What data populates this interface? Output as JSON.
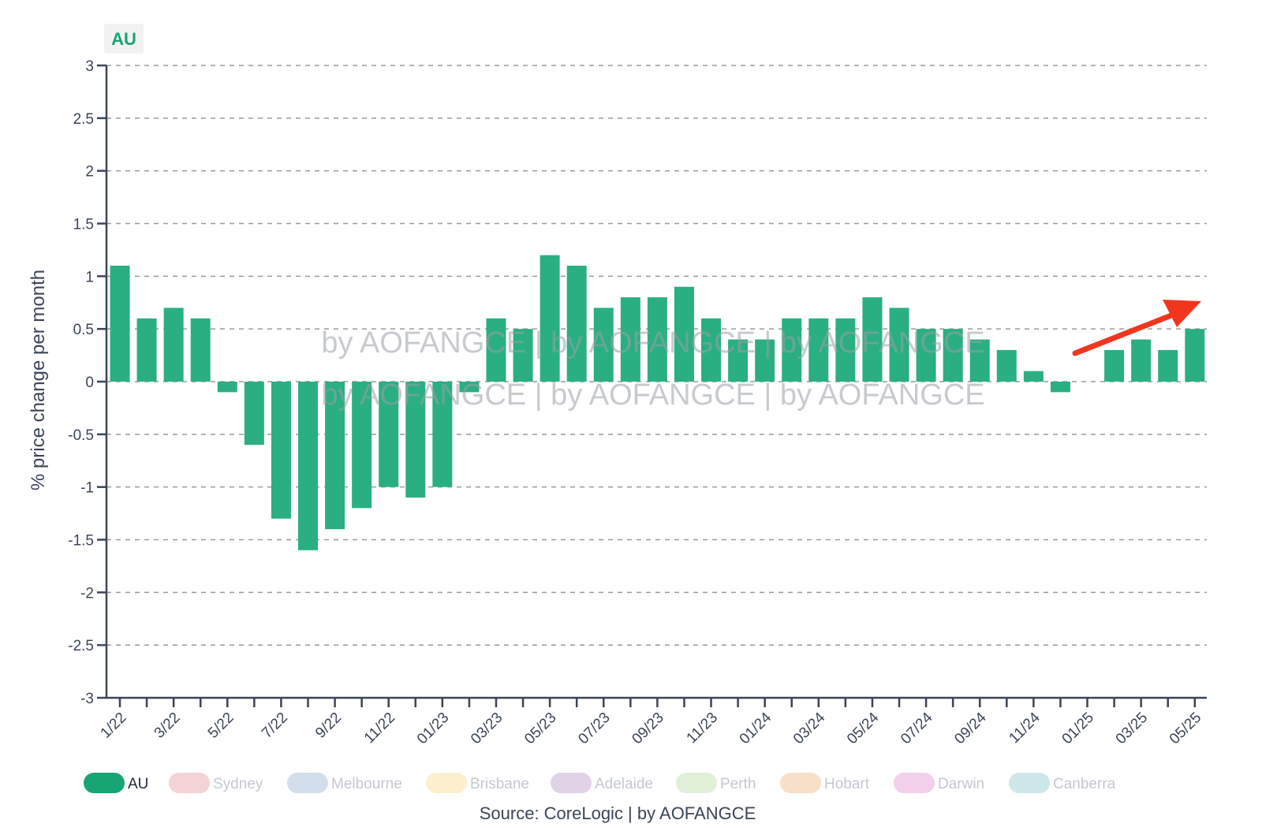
{
  "badge": {
    "label": "AU"
  },
  "source": "Source: CoreLogic | by AOFANGCE",
  "watermark": {
    "line1": "by AOFANGCE | by AOFANGCE | by AOFANGCE",
    "line2": "by AOFANGCE | by AOFANGCE | by AOFANGCE"
  },
  "colors": {
    "bar": "#2aaf82",
    "arrow": "#f2361e",
    "axis": "#3b4557"
  },
  "legend": [
    {
      "label": "AU",
      "color": "#17a573",
      "text_color": "#1f2937",
      "active": true
    },
    {
      "label": "Sydney",
      "color": "#f3d3d3",
      "text_color": "#c4c8cf",
      "active": false
    },
    {
      "label": "Melbourne",
      "color": "#d3deec",
      "text_color": "#c4c8cf",
      "active": false
    },
    {
      "label": "Brisbane",
      "color": "#fbefcd",
      "text_color": "#c4c8cf",
      "active": false
    },
    {
      "label": "Adelaide",
      "color": "#e0d3e8",
      "text_color": "#c4c8cf",
      "active": false
    },
    {
      "label": "Perth",
      "color": "#e0f0d8",
      "text_color": "#c4c8cf",
      "active": false
    },
    {
      "label": "Hobart",
      "color": "#f8dfc8",
      "text_color": "#c4c8cf",
      "active": false
    },
    {
      "label": "Darwin",
      "color": "#f3d0ea",
      "text_color": "#c4c8cf",
      "active": false
    },
    {
      "label": "Canberra",
      "color": "#cde6ea",
      "text_color": "#c4c8cf",
      "active": false
    }
  ],
  "chart_data": {
    "type": "bar",
    "ylabel": "% price change per month",
    "ylim": [
      -3,
      3
    ],
    "yticks": [
      "3",
      "2.5",
      "2",
      "1.5",
      "1",
      "0.5",
      "0",
      "-0.5",
      "-1",
      "-1.5",
      "-2",
      "-2.5",
      "-3"
    ],
    "grid": true,
    "categories": [
      "1/22",
      "2/22",
      "3/22",
      "4/22",
      "5/22",
      "6/22",
      "7/22",
      "8/22",
      "9/22",
      "10/22",
      "11/22",
      "12/22",
      "01/23",
      "02/23",
      "03/23",
      "04/23",
      "05/23",
      "06/23",
      "07/23",
      "08/23",
      "09/23",
      "10/23",
      "11/23",
      "12/23",
      "01/24",
      "02/24",
      "03/24",
      "04/24",
      "05/24",
      "06/24",
      "07/24",
      "08/24",
      "09/24",
      "10/24",
      "11/24",
      "12/24",
      "01/25",
      "02/25",
      "03/25",
      "04/25",
      "05/25"
    ],
    "xtick_labels": [
      "1/22",
      "3/22",
      "5/22",
      "7/22",
      "9/22",
      "11/22",
      "01/23",
      "03/23",
      "05/23",
      "07/23",
      "09/23",
      "11/23",
      "01/24",
      "03/24",
      "05/24",
      "07/24",
      "09/24",
      "11/24",
      "01/25",
      "03/25",
      "05/25"
    ],
    "values": [
      1.1,
      0.6,
      0.7,
      0.6,
      -0.1,
      -0.6,
      -1.3,
      -1.6,
      -1.4,
      -1.2,
      -1.0,
      -1.1,
      -1.0,
      -0.1,
      0.6,
      0.5,
      1.2,
      1.1,
      0.7,
      0.8,
      0.8,
      0.9,
      0.6,
      0.4,
      0.4,
      0.6,
      0.6,
      0.6,
      0.8,
      0.7,
      0.5,
      0.5,
      0.4,
      0.3,
      0.1,
      -0.1,
      null,
      0.3,
      0.4,
      0.3,
      0.5
    ],
    "annotation": "trend-arrow"
  }
}
